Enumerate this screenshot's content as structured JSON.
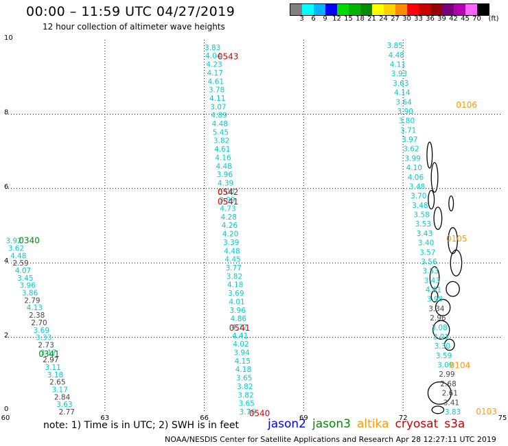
{
  "title": "00:00 – 11:59 UTC 04/27/2019",
  "subtitle": "12 hour collection of altimeter wave heights",
  "legend": {
    "colors": [
      "#808080",
      "#00ffff",
      "#00b4ff",
      "#0000ff",
      "#00dc00",
      "#00b400",
      "#008c00",
      "#ffff00",
      "#ffd200",
      "#ff8c00",
      "#ff0000",
      "#c80000",
      "#960000",
      "#780078",
      "#b400b4",
      "#ff64ff",
      "#000000"
    ],
    "tick_labels": [
      "3",
      "6",
      "9",
      "12",
      "15",
      "18",
      "21",
      "24",
      "27",
      "30",
      "33",
      "36",
      "39",
      "42",
      "45",
      "70",
      "(ft)"
    ]
  },
  "note": "note:  1) Time is in UTC; 2) SWH is in feet",
  "satellites": [
    {
      "name": "jason2",
      "color": "#0000ff"
    },
    {
      "name": "jason3",
      "color": "#008c00"
    },
    {
      "name": "altika",
      "color": "#ff9900"
    },
    {
      "name": "cryosat",
      "color": "#cc0000"
    },
    {
      "name": "s3a",
      "color": "#cc0000"
    }
  ],
  "footer": "NOAA/NESDIS Center for Satellite Applications and Research   Apr 28 12:27:11 UTC 2019",
  "chart_data": {
    "type": "map",
    "xlim": [
      60,
      75
    ],
    "ylim": [
      0,
      10
    ],
    "x_ticks": [
      "60",
      "63",
      "66",
      "69",
      "72",
      "75"
    ],
    "y_ticks": [
      "0",
      "2",
      "4",
      "6",
      "8",
      "10"
    ],
    "grid": "dotted",
    "tracks": [
      {
        "x0": 60.25,
        "x1": 61.85,
        "y0": 4.6,
        "y1": 0.0,
        "values": [
          "3.92",
          "3.62",
          "4.48",
          "2.59",
          "4.07",
          "3.45",
          "3.96",
          "3.86",
          "2.79",
          "4.13",
          "2.38",
          "2.70",
          "3.69",
          "3.33",
          "2.73",
          "3.17",
          "2.97",
          "3.11",
          "3.18",
          "2.65",
          "3.17",
          "2.84",
          "3.63",
          "2.77"
        ],
        "colors": [
          "c",
          "c",
          "c",
          "g",
          "c",
          "c",
          "c",
          "c",
          "g",
          "c",
          "g",
          "g",
          "c",
          "c",
          "g",
          "c",
          "g",
          "c",
          "c",
          "g",
          "c",
          "g",
          "c",
          "g"
        ]
      },
      {
        "x0": 66.25,
        "x1": 67.3,
        "y0": 9.8,
        "y1": 0.0,
        "values": [
          "3.83",
          "4.04",
          "4.23",
          "4.17",
          "4.61",
          "3.78",
          "4.11",
          "3.07",
          "4.89",
          "4.48",
          "5.45",
          "3.82",
          "4.61",
          "4.16",
          "4.48",
          "3.96",
          "4.39",
          "5.00",
          "3.99",
          "4.73",
          "4.28",
          "4.26",
          "4.20",
          "3.39",
          "4.48",
          "4.45",
          "3.77",
          "3.82",
          "4.18",
          "3.69",
          "4.01",
          "3.96",
          "4.86",
          "4.72",
          "4.41",
          "4.02",
          "3.94",
          "4.15",
          "4.18",
          "3.65",
          "3.82",
          "3.82",
          "3.65",
          "3.76"
        ],
        "colors": [
          "c",
          "c",
          "c",
          "c",
          "c",
          "c",
          "c",
          "c",
          "c",
          "c",
          "c",
          "c",
          "c",
          "c",
          "c",
          "c",
          "c",
          "c",
          "c",
          "c",
          "c",
          "c",
          "c",
          "c",
          "c",
          "c",
          "c",
          "c",
          "c",
          "c",
          "c",
          "c",
          "c",
          "c",
          "c",
          "c",
          "c",
          "c",
          "c",
          "c",
          "c",
          "c",
          "c",
          "c"
        ]
      },
      {
        "x0": 71.75,
        "x1": 73.5,
        "y0": 9.85,
        "y1": 0.0,
        "values": [
          "3.85",
          "4.48",
          "4.11",
          "3.93",
          "3.63",
          "4.14",
          "3.64",
          "3.90",
          "3.80",
          "3.71",
          "3.97",
          "3.62",
          "3.99",
          "4.10",
          "4.06",
          "3.48",
          "3.70",
          "3.48",
          "3.58",
          "3.53",
          "3.43",
          "3.40",
          "3.57",
          "3.56",
          "3.53",
          "3.43",
          "4.01",
          "3.98",
          "3.34",
          "2.96",
          "3.08",
          "3.01",
          "3.30",
          "3.59",
          "3.09",
          "2.99",
          "2.68",
          "2.61",
          "3.41",
          "3.83"
        ],
        "colors": [
          "c",
          "c",
          "c",
          "c",
          "c",
          "c",
          "c",
          "c",
          "c",
          "c",
          "c",
          "c",
          "c",
          "c",
          "c",
          "c",
          "c",
          "c",
          "c",
          "c",
          "c",
          "c",
          "c",
          "c",
          "c",
          "c",
          "c",
          "c",
          "g",
          "g",
          "c",
          "c",
          "c",
          "c",
          "c",
          "g",
          "g",
          "g",
          "g",
          "c"
        ]
      }
    ],
    "time_labels": [
      {
        "text": "0543",
        "x": 66.4,
        "y": 9.55,
        "color": "#dd0000"
      },
      {
        "text": "0542",
        "x": 66.4,
        "y": 5.9,
        "color": "#dd0000"
      },
      {
        "text": "0541",
        "x": 66.4,
        "y": 5.65,
        "color": "#dd0000"
      },
      {
        "text": "0541",
        "x": 66.75,
        "y": 2.25,
        "color": "#dd0000"
      },
      {
        "text": "0540",
        "x": 67.35,
        "y": -0.05,
        "color": "#dd0000"
      },
      {
        "text": "0340",
        "x": 60.4,
        "y": 4.6,
        "color": "#008c00"
      },
      {
        "text": "0341",
        "x": 61.0,
        "y": 1.55,
        "color": "#008c00"
      },
      {
        "text": "0106",
        "x": 73.6,
        "y": 8.25,
        "color": "#ff9900"
      },
      {
        "text": "0105",
        "x": 73.3,
        "y": 4.65,
        "color": "#ff9900"
      },
      {
        "text": "0104",
        "x": 73.4,
        "y": 1.25,
        "color": "#ff9900"
      },
      {
        "text": "0103",
        "x": 74.2,
        "y": -0.0,
        "color": "#ff9900"
      }
    ],
    "islands": [
      {
        "x": 72.8,
        "y": 6.9,
        "rx": 0.08,
        "ry": 0.35
      },
      {
        "x": 72.95,
        "y": 6.3,
        "rx": 0.1,
        "ry": 0.4
      },
      {
        "x": 72.85,
        "y": 5.7,
        "rx": 0.09,
        "ry": 0.25
      },
      {
        "x": 73.05,
        "y": 5.2,
        "rx": 0.12,
        "ry": 0.3
      },
      {
        "x": 73.45,
        "y": 5.6,
        "rx": 0.07,
        "ry": 0.2
      },
      {
        "x": 73.5,
        "y": 4.6,
        "rx": 0.14,
        "ry": 0.35
      },
      {
        "x": 73.6,
        "y": 4.0,
        "rx": 0.17,
        "ry": 0.35
      },
      {
        "x": 73.5,
        "y": 3.3,
        "rx": 0.2,
        "ry": 0.2
      },
      {
        "x": 72.95,
        "y": 3.6,
        "rx": 0.14,
        "ry": 0.3
      },
      {
        "x": 73.2,
        "y": 2.8,
        "rx": 0.22,
        "ry": 0.22
      },
      {
        "x": 72.95,
        "y": 3.1,
        "rx": 0.1,
        "ry": 0.15
      },
      {
        "x": 73.15,
        "y": 2.2,
        "rx": 0.25,
        "ry": 0.25
      },
      {
        "x": 73.4,
        "y": 1.8,
        "rx": 0.15,
        "ry": 0.15
      },
      {
        "x": 73.1,
        "y": 0.5,
        "rx": 0.35,
        "ry": 0.3
      },
      {
        "x": 73.05,
        "y": 0.05,
        "rx": 0.18,
        "ry": 0.1
      }
    ]
  }
}
